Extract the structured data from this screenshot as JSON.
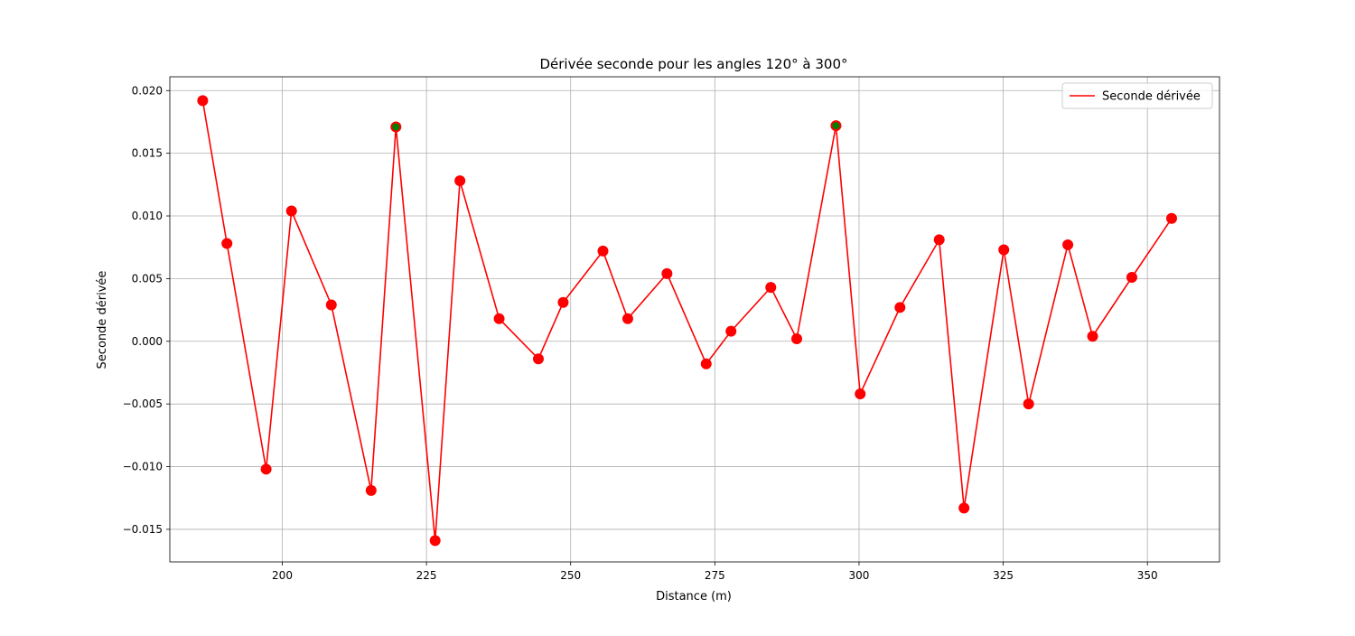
{
  "chart_data": {
    "type": "line",
    "title": "Dérivée seconde pour les angles 120° à 300°",
    "xlabel": "Distance (m)",
    "ylabel": "Seconde dérivée",
    "xlim": [
      180.5,
      362.5
    ],
    "ylim": [
      -0.0176,
      0.0211
    ],
    "xticks": [
      200,
      225,
      250,
      275,
      300,
      325,
      350
    ],
    "xtick_labels": [
      "200",
      "225",
      "250",
      "275",
      "300",
      "325",
      "350"
    ],
    "yticks": [
      -0.015,
      -0.01,
      -0.005,
      0.0,
      0.005,
      0.01,
      0.015,
      0.02
    ],
    "ytick_labels": [
      "−0.015",
      "−0.010",
      "−0.005",
      "0.000",
      "0.005",
      "0.010",
      "0.015",
      "0.020"
    ],
    "grid": true,
    "legend_position": "top-right",
    "series": [
      {
        "name": "Seconde dérivée",
        "color": "#ff0000",
        "marker": "circle",
        "x": [
          186.2,
          190.4,
          197.2,
          201.6,
          208.5,
          215.4,
          219.7,
          226.5,
          230.8,
          237.6,
          244.4,
          248.7,
          255.6,
          259.9,
          266.7,
          273.5,
          277.8,
          284.7,
          289.2,
          296.0,
          300.2,
          307.1,
          313.9,
          318.2,
          325.1,
          329.4,
          336.2,
          340.5,
          347.3,
          354.2
        ],
        "values": [
          0.0192,
          0.0078,
          -0.0102,
          0.0104,
          0.0029,
          -0.0119,
          0.0171,
          -0.0159,
          0.0128,
          0.0018,
          -0.0014,
          0.0031,
          0.0072,
          0.0018,
          0.0054,
          -0.0018,
          0.0008,
          0.0043,
          0.0002,
          0.0172,
          -0.0042,
          0.0027,
          0.0081,
          -0.0133,
          0.0073,
          -0.005,
          0.0077,
          0.0004,
          0.0051,
          0.0098
        ]
      }
    ],
    "highlighted_points": {
      "color": "#008000",
      "x": [
        219.7,
        296.0
      ],
      "values": [
        0.0171,
        0.0172
      ]
    }
  }
}
